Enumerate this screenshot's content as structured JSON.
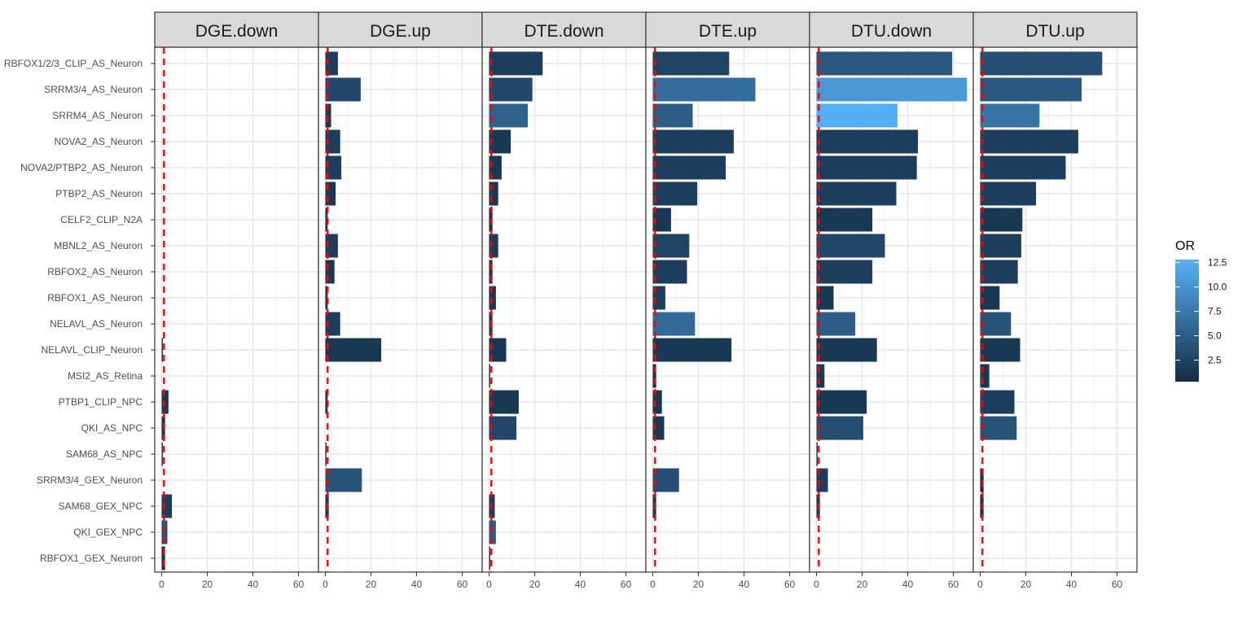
{
  "chart_data": {
    "type": "bar",
    "orientation": "horizontal",
    "facets": [
      "DGE.down",
      "DGE.up",
      "DTE.down",
      "DTE.up",
      "DTU.down",
      "DTU.up"
    ],
    "categories": [
      "RBFOX1/2/3_CLIP_AS_Neuron",
      "SRRM3/4_AS_Neuron",
      "SRRM4_AS_Neuron",
      "NOVA2_AS_Neuron",
      "NOVA2/PTBP2_AS_Neuron",
      "PTBP2_AS_Neuron",
      "CELF2_CLIP_N2A",
      "MBNL2_AS_Neuron",
      "RBFOX2_AS_Neuron",
      "RBFOX1_AS_Neuron",
      "NELAVL_AS_Neuron",
      "NELAVL_CLIP_Neuron",
      "MSI2_AS_Retina",
      "PTBP1_CLIP_NPC",
      "QKI_AS_NPC",
      "SAM68_AS_NPC",
      "SRRM3/4_GEX_Neuron",
      "SAM68_GEX_NPC",
      "QKI_GEX_NPC",
      "RBFOX1_GEX_Neuron"
    ],
    "series": [
      {
        "facet": "DGE.down",
        "values": [
          0,
          0,
          0,
          0,
          0,
          0,
          0,
          0,
          0,
          0,
          0,
          0.5,
          0,
          3,
          1.5,
          0.5,
          0,
          4.5,
          2.5,
          1.5
        ],
        "or": [
          null,
          null,
          null,
          null,
          null,
          null,
          null,
          null,
          null,
          null,
          null,
          0.5,
          null,
          1.5,
          1.5,
          0.5,
          null,
          2.0,
          4.0,
          1.0
        ]
      },
      {
        "facet": "DGE.up",
        "values": [
          5.5,
          15.5,
          2.5,
          6.5,
          7,
          4.5,
          1,
          5.5,
          4,
          1,
          6.5,
          24.5,
          0,
          1,
          0,
          0.5,
          16,
          1.5,
          0,
          0
        ],
        "or": [
          2.0,
          3.0,
          1.5,
          2.0,
          2.0,
          1.5,
          1.0,
          2.0,
          1.5,
          1.0,
          2.0,
          1.5,
          null,
          1.0,
          null,
          0.5,
          4.0,
          1.5,
          null,
          null
        ]
      },
      {
        "facet": "DTE.down",
        "values": [
          23.5,
          19,
          17,
          9.5,
          5.5,
          4,
          1.5,
          4,
          1.5,
          3,
          1.5,
          7.5,
          0.5,
          13,
          12,
          0,
          0,
          2.5,
          3,
          0.5
        ],
        "or": [
          2.0,
          3.0,
          5.5,
          1.5,
          1.5,
          1.5,
          1.0,
          2.0,
          1.5,
          1.5,
          2.0,
          1.5,
          0.5,
          1.5,
          3.0,
          null,
          null,
          2.0,
          5.0,
          0.5
        ]
      },
      {
        "facet": "DTE.up",
        "values": [
          33.5,
          45,
          17.5,
          35.5,
          32,
          19.5,
          8,
          16,
          15,
          5.5,
          18.5,
          34.5,
          1.5,
          4,
          5,
          0,
          11.5,
          1.5,
          0,
          0
        ],
        "or": [
          2.5,
          6.5,
          5.0,
          2.0,
          2.0,
          2.0,
          1.5,
          2.5,
          2.0,
          2.0,
          6.0,
          1.5,
          1.0,
          1.5,
          1.5,
          null,
          3.5,
          1.5,
          null,
          null
        ]
      },
      {
        "facet": "DTU.down",
        "values": [
          59.5,
          66,
          35.5,
          44.5,
          44,
          35,
          24.5,
          30,
          24.5,
          7.5,
          17,
          26.5,
          3.5,
          22,
          20.5,
          0.5,
          5,
          1.5,
          0,
          0
        ],
        "or": [
          4.5,
          10.5,
          12.5,
          2.0,
          2.0,
          2.0,
          1.5,
          3.0,
          2.0,
          1.5,
          5.0,
          1.5,
          1.5,
          1.5,
          3.5,
          0.5,
          2.0,
          1.5,
          null,
          null
        ]
      },
      {
        "facet": "DTU.up",
        "values": [
          53.5,
          44.5,
          26,
          43,
          37.5,
          24.5,
          18.5,
          18,
          16.5,
          8.5,
          13.5,
          17.5,
          4,
          15,
          16,
          0,
          1.5,
          1.5,
          0,
          0
        ],
        "or": [
          3.5,
          4.5,
          7.0,
          2.0,
          2.0,
          2.0,
          1.5,
          2.0,
          2.0,
          1.5,
          4.0,
          1.5,
          1.5,
          2.0,
          4.0,
          null,
          1.0,
          1.0,
          null,
          null
        ]
      }
    ],
    "x_ticks": [
      "0",
      "20",
      "40",
      "60"
    ],
    "xlim": [
      -3,
      70
    ],
    "reference_line": {
      "x": 1,
      "color": "#ff0000",
      "style": "dashed"
    },
    "grid": true,
    "legend": {
      "title": "OR",
      "position": "right",
      "ticks": [
        "12.5",
        "10.0",
        "7.5",
        "5.0",
        "2.5"
      ],
      "tick_values": [
        12.5,
        10.0,
        7.5,
        5.0,
        2.5
      ],
      "range": [
        0.3,
        12.8
      ],
      "color_low": "#132b43",
      "color_high": "#56b1f7"
    }
  }
}
